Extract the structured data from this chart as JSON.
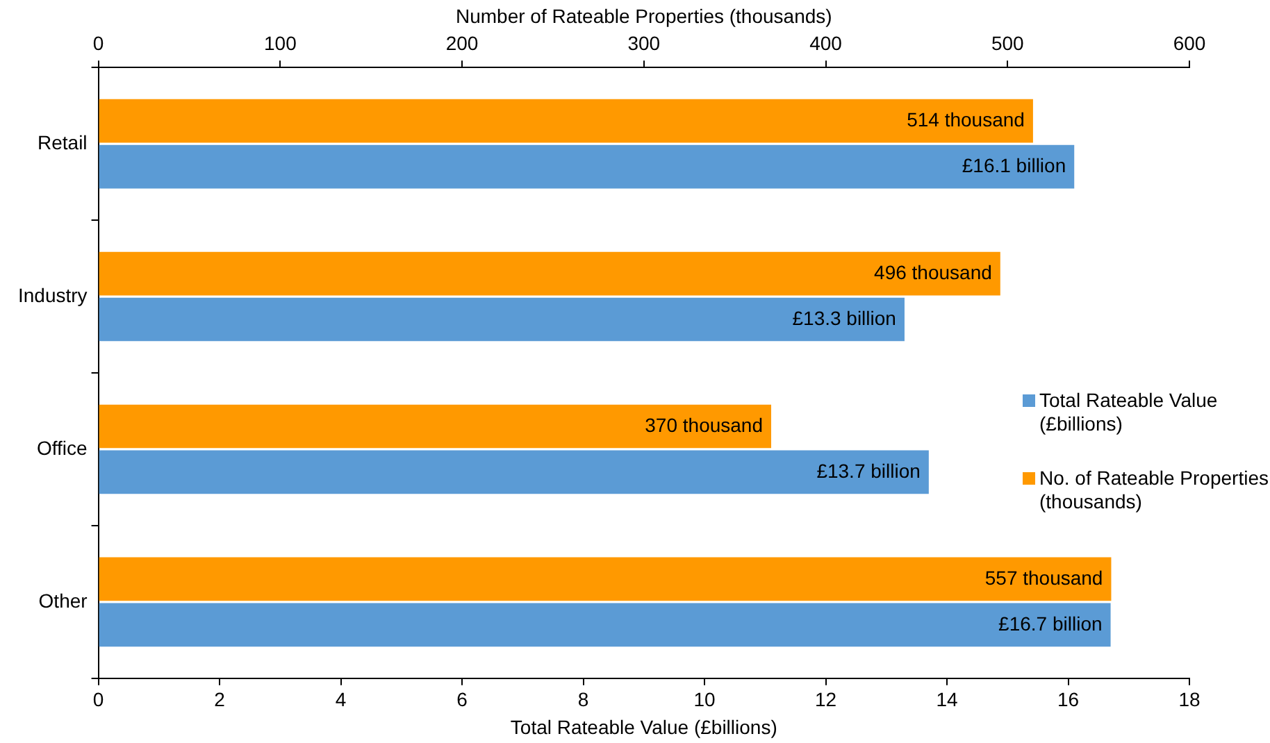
{
  "chart_data": {
    "type": "bar",
    "orientation": "horizontal",
    "categories": [
      "Retail",
      "Industry",
      "Office",
      "Other"
    ],
    "xlabel": "Total Rateable Value (£billions)",
    "x2label": "Number of Rateable Properties (thousands)",
    "xlim": [
      0,
      18
    ],
    "xticks": [
      0,
      2,
      4,
      6,
      8,
      10,
      12,
      14,
      16,
      18
    ],
    "x2lim": [
      0,
      600
    ],
    "x2ticks": [
      0,
      100,
      200,
      300,
      400,
      500,
      600
    ],
    "series": [
      {
        "name": "Total Rateable Value (£billions)",
        "color": "#5b9bd5",
        "values": [
          16.1,
          13.3,
          13.7,
          16.7
        ],
        "value_labels": [
          "£16.1 billion",
          "£13.3 billion",
          "£13.7 billion",
          "£16.7 billion"
        ]
      },
      {
        "name": "No. of Rateable Properties (thousands)",
        "color": "#ff9900",
        "axis": "x2",
        "values": [
          514,
          496,
          370,
          557
        ],
        "value_labels": [
          "514 thousand",
          "496 thousand",
          "370 thousand",
          "557 thousand"
        ]
      }
    ],
    "grid": false,
    "legend": "right"
  }
}
